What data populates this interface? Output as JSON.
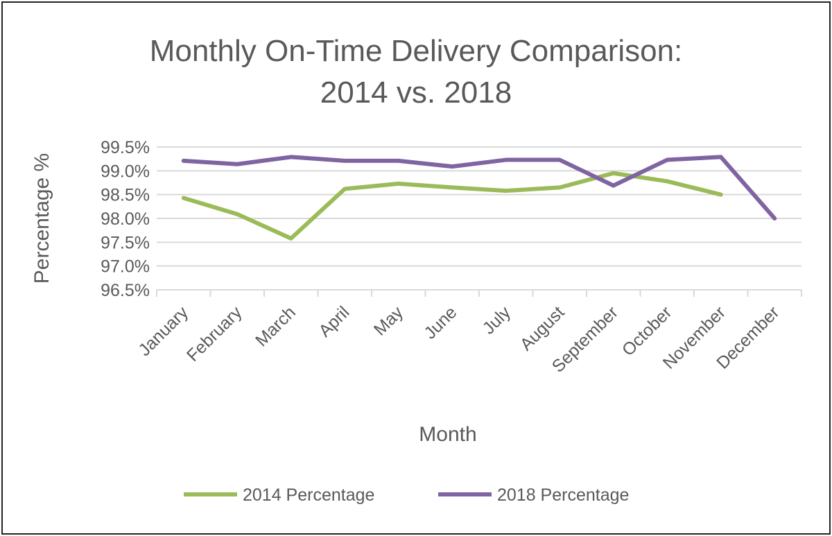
{
  "chart_data": {
    "type": "line",
    "title": [
      "Monthly On-Time Delivery Comparison:",
      "2014 vs. 2018"
    ],
    "xlabel": "Month",
    "ylabel": "Percentage %",
    "categories": [
      "January",
      "February",
      "March",
      "April",
      "May",
      "June",
      "July",
      "August",
      "September",
      "October",
      "November",
      "December"
    ],
    "yticks": [
      "96.5%",
      "97.0%",
      "97.5%",
      "98.0%",
      "98.5%",
      "99.0%",
      "99.5%"
    ],
    "ylim": [
      96.5,
      99.5
    ],
    "grid": true,
    "legend_position": "bottom",
    "series": [
      {
        "name": "2014 Percentage",
        "color": "#9BBB59",
        "values": [
          98.43,
          98.09,
          97.58,
          98.62,
          98.73,
          98.65,
          98.58,
          98.65,
          98.95,
          98.78,
          98.5,
          null
        ]
      },
      {
        "name": "2018 Percentage",
        "color": "#8064A2",
        "values": [
          99.21,
          99.14,
          99.29,
          99.21,
          99.21,
          99.09,
          99.23,
          99.23,
          98.69,
          99.23,
          99.29,
          98.0
        ]
      }
    ]
  }
}
